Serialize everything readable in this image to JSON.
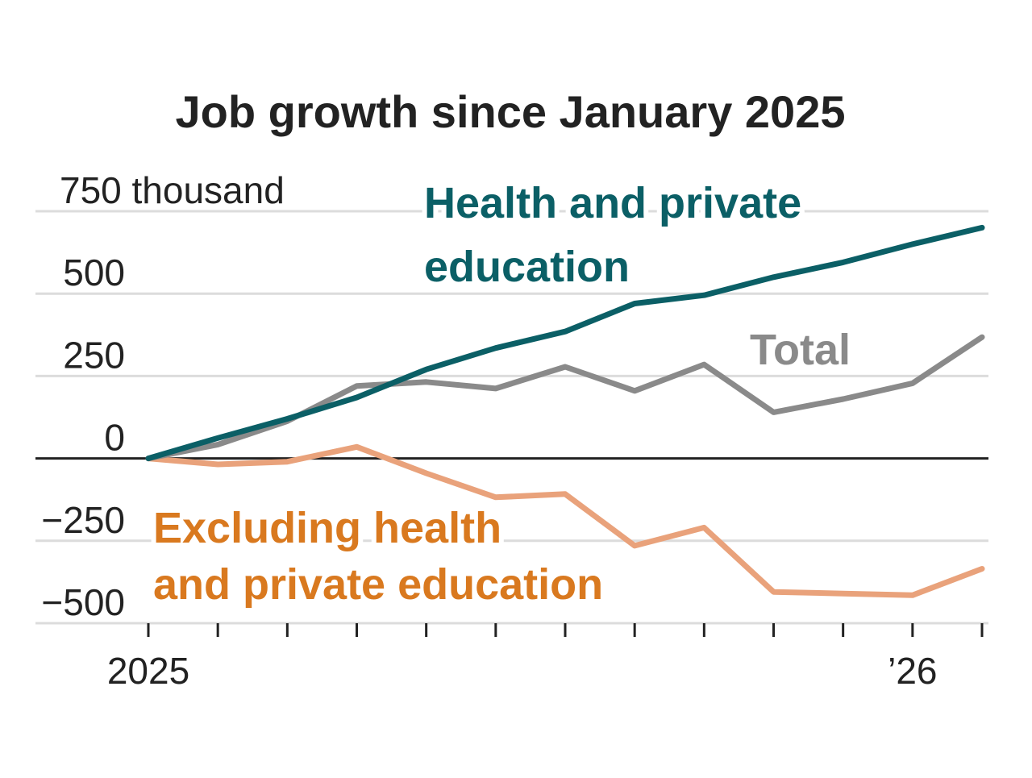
{
  "chart_data": {
    "type": "line",
    "title": "Job growth since January 2025",
    "xlabel": "",
    "ylabel": "",
    "y_unit_label": "750 thousand",
    "ylim": [
      -500,
      750
    ],
    "yticks": [
      {
        "value": 750,
        "label": "750 thousand"
      },
      {
        "value": 500,
        "label": "500"
      },
      {
        "value": 250,
        "label": "250"
      },
      {
        "value": 0,
        "label": "0"
      },
      {
        "value": -250,
        "label": "−250"
      },
      {
        "value": -500,
        "label": "−500"
      }
    ],
    "x": [
      0,
      1,
      2,
      3,
      4,
      5,
      6,
      7,
      8,
      9,
      10,
      11,
      12
    ],
    "xticks": [
      {
        "index": 0,
        "label": "2025"
      },
      {
        "index": 11,
        "label": "’26"
      }
    ],
    "series": [
      {
        "name": "Health and private education",
        "label_lines": [
          "Health and private",
          "education"
        ],
        "color": "#0b5f66",
        "values": [
          0,
          62,
          120,
          185,
          270,
          335,
          385,
          470,
          495,
          550,
          595,
          650,
          700
        ]
      },
      {
        "name": "Total",
        "label_lines": [
          "Total"
        ],
        "color": "#8a8a8a",
        "values": [
          0,
          42,
          113,
          220,
          232,
          212,
          278,
          205,
          285,
          140,
          180,
          228,
          368
        ]
      },
      {
        "name": "Excluding health and private education",
        "label_lines": [
          "Excluding health",
          "and private education"
        ],
        "color": "#e9a27b",
        "label_color": "#d9791f",
        "values": [
          0,
          -18,
          -10,
          35,
          -45,
          -118,
          -108,
          -265,
          -210,
          -405,
          -410,
          -415,
          -335
        ]
      }
    ]
  }
}
